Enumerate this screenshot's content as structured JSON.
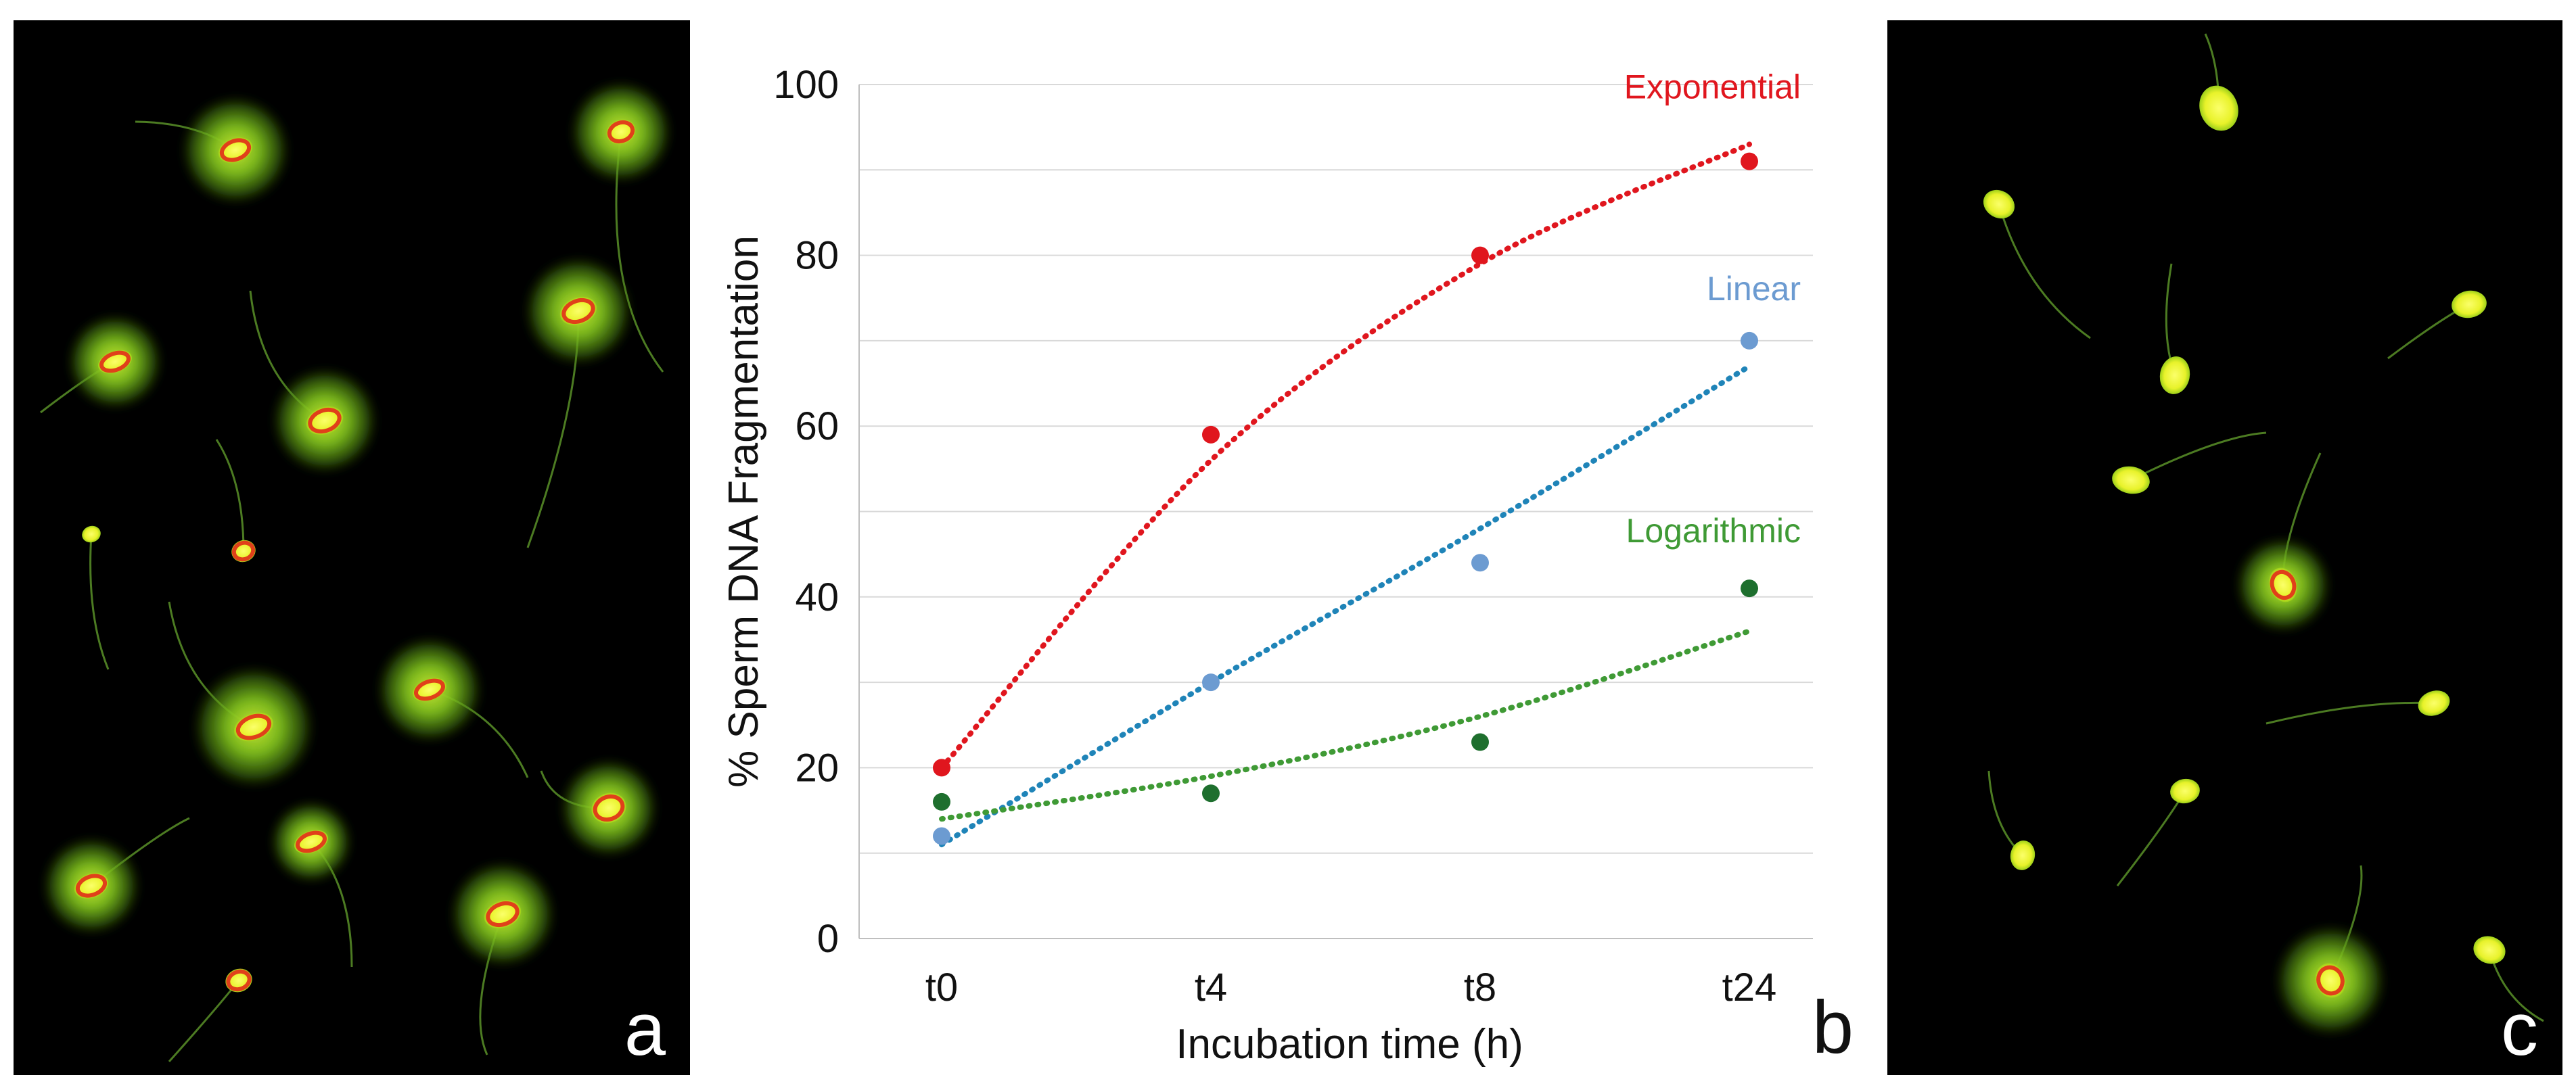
{
  "panels": {
    "a": {
      "label": "a"
    },
    "b": {
      "label": "b"
    },
    "c": {
      "label": "c"
    }
  },
  "colors": {
    "exponential": "#e0161e",
    "linear_points": "#6c9bd1",
    "linear_trend": "#1f84b8",
    "logarithmic": "#1e6f2e",
    "log_trend": "#3f9a35",
    "cell_halo": "#7dbf1c",
    "cell_core": "#e8f22a",
    "cell_ring": "#e0401a"
  },
  "chart_data": {
    "type": "scatter",
    "categories": [
      "t0",
      "t4",
      "t8",
      "t24"
    ],
    "xlabel": "Incubation time (h)",
    "ylabel": "% Sperm DNA Fragmentation",
    "ylim": [
      0,
      100
    ],
    "yticks": [
      0,
      20,
      40,
      60,
      80,
      100
    ],
    "grid": true,
    "series": [
      {
        "name": "Exponential",
        "key": "exponential",
        "values": [
          20,
          59,
          80,
          91
        ],
        "trend": [
          20,
          56,
          79,
          93
        ]
      },
      {
        "name": "Linear",
        "key": "linear",
        "values": [
          12,
          30,
          44,
          70
        ],
        "trend": [
          11,
          30,
          48,
          67
        ]
      },
      {
        "name": "Logarithmic",
        "key": "logarithmic",
        "values": [
          16,
          17,
          23,
          41
        ],
        "trend": [
          14,
          19,
          26,
          36
        ]
      }
    ]
  }
}
